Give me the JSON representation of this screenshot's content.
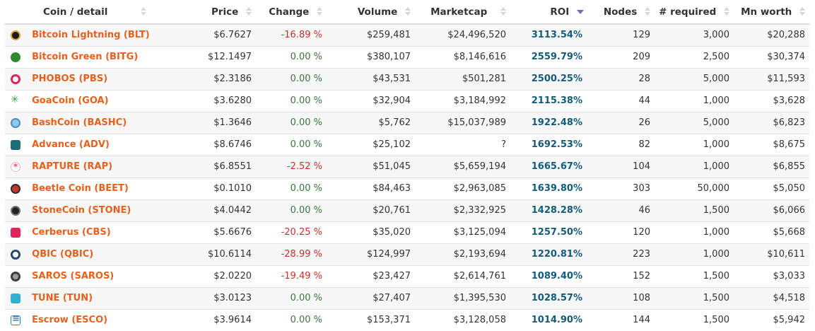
{
  "table": {
    "headers": {
      "coin": "Coin / detail",
      "price": "Price",
      "change": "Change",
      "volume": "Volume",
      "marketcap": "Marketcap",
      "roi": "ROI",
      "nodes": "Nodes",
      "required": "# required",
      "worth": "Mn worth"
    },
    "sort": {
      "column": "roi",
      "direction": "descending"
    },
    "colors": {
      "coin_link": "#e8601c",
      "change_negative": "#c9302c",
      "change_zero": "#3c763d",
      "roi": "#135b7a",
      "sort_active": "#6b6bc4"
    },
    "rows": [
      {
        "icon": "bitcoin-lightning-icon",
        "name": "Bitcoin Lightning (BLT)",
        "price": "$6.7627",
        "change": "-16.89 %",
        "volume": "$259,481",
        "marketcap": "$24,496,520",
        "roi": "3113.54%",
        "nodes": "129",
        "required": "3,000",
        "worth": "$20,288"
      },
      {
        "icon": "bitcoin-green-icon",
        "name": "Bitcoin Green (BITG)",
        "price": "$12.1497",
        "change": "0.00 %",
        "volume": "$380,107",
        "marketcap": "$8,146,616",
        "roi": "2559.79%",
        "nodes": "209",
        "required": "2,500",
        "worth": "$30,374"
      },
      {
        "icon": "phobos-icon",
        "name": "PHOBOS (PBS)",
        "price": "$2.3186",
        "change": "0.00 %",
        "volume": "$43,531",
        "marketcap": "$501,281",
        "roi": "2500.25%",
        "nodes": "28",
        "required": "5,000",
        "worth": "$11,593"
      },
      {
        "icon": "goacoin-icon",
        "name": "GoaCoin (GOA)",
        "price": "$3.6280",
        "change": "0.00 %",
        "volume": "$32,904",
        "marketcap": "$3,184,992",
        "roi": "2115.38%",
        "nodes": "44",
        "required": "1,000",
        "worth": "$3,628"
      },
      {
        "icon": "bashcoin-icon",
        "name": "BashCoin (BASHC)",
        "price": "$1.3646",
        "change": "0.00 %",
        "volume": "$5,762",
        "marketcap": "$15,037,989",
        "roi": "1922.48%",
        "nodes": "26",
        "required": "5,000",
        "worth": "$6,823"
      },
      {
        "icon": "advance-icon",
        "name": "Advance (ADV)",
        "price": "$8.6746",
        "change": "0.00 %",
        "volume": "$25,102",
        "marketcap": "?",
        "roi": "1692.53%",
        "nodes": "82",
        "required": "1,000",
        "worth": "$8,675"
      },
      {
        "icon": "rapture-icon",
        "name": "RAPTURE (RAP)",
        "price": "$6.8551",
        "change": "-2.52 %",
        "volume": "$51,045",
        "marketcap": "$5,659,194",
        "roi": "1665.67%",
        "nodes": "104",
        "required": "1,000",
        "worth": "$6,855"
      },
      {
        "icon": "beetle-coin-icon",
        "name": "Beetle Coin (BEET)",
        "price": "$0.1010",
        "change": "0.00 %",
        "volume": "$84,463",
        "marketcap": "$2,963,085",
        "roi": "1639.80%",
        "nodes": "303",
        "required": "50,000",
        "worth": "$5,050"
      },
      {
        "icon": "stonecoin-icon",
        "name": "StoneCoin (STONE)",
        "price": "$4.0442",
        "change": "0.00 %",
        "volume": "$20,761",
        "marketcap": "$2,332,925",
        "roi": "1428.28%",
        "nodes": "46",
        "required": "1,500",
        "worth": "$6,066"
      },
      {
        "icon": "cerberus-icon",
        "name": "Cerberus (CBS)",
        "price": "$5.6676",
        "change": "-20.25 %",
        "volume": "$35,020",
        "marketcap": "$3,125,094",
        "roi": "1257.50%",
        "nodes": "120",
        "required": "1,000",
        "worth": "$5,668"
      },
      {
        "icon": "qbic-icon",
        "name": "QBIC (QBIC)",
        "price": "$10.6114",
        "change": "-28.99 %",
        "volume": "$124,997",
        "marketcap": "$2,193,694",
        "roi": "1220.81%",
        "nodes": "223",
        "required": "1,000",
        "worth": "$10,611"
      },
      {
        "icon": "saros-icon",
        "name": "SAROS (SAROS)",
        "price": "$2.0220",
        "change": "-19.49 %",
        "volume": "$23,427",
        "marketcap": "$2,614,761",
        "roi": "1089.40%",
        "nodes": "152",
        "required": "1,500",
        "worth": "$3,033"
      },
      {
        "icon": "tune-icon",
        "name": "TUNE (TUN)",
        "price": "$3.0123",
        "change": "0.00 %",
        "volume": "$27,407",
        "marketcap": "$1,395,530",
        "roi": "1028.57%",
        "nodes": "108",
        "required": "1,500",
        "worth": "$4,518"
      },
      {
        "icon": "escrow-icon",
        "name": "Escrow (ESCO)",
        "price": "$3.9614",
        "change": "0.00 %",
        "volume": "$153,371",
        "marketcap": "$3,128,058",
        "roi": "1014.90%",
        "nodes": "144",
        "required": "1,500",
        "worth": "$5,942"
      }
    ]
  }
}
